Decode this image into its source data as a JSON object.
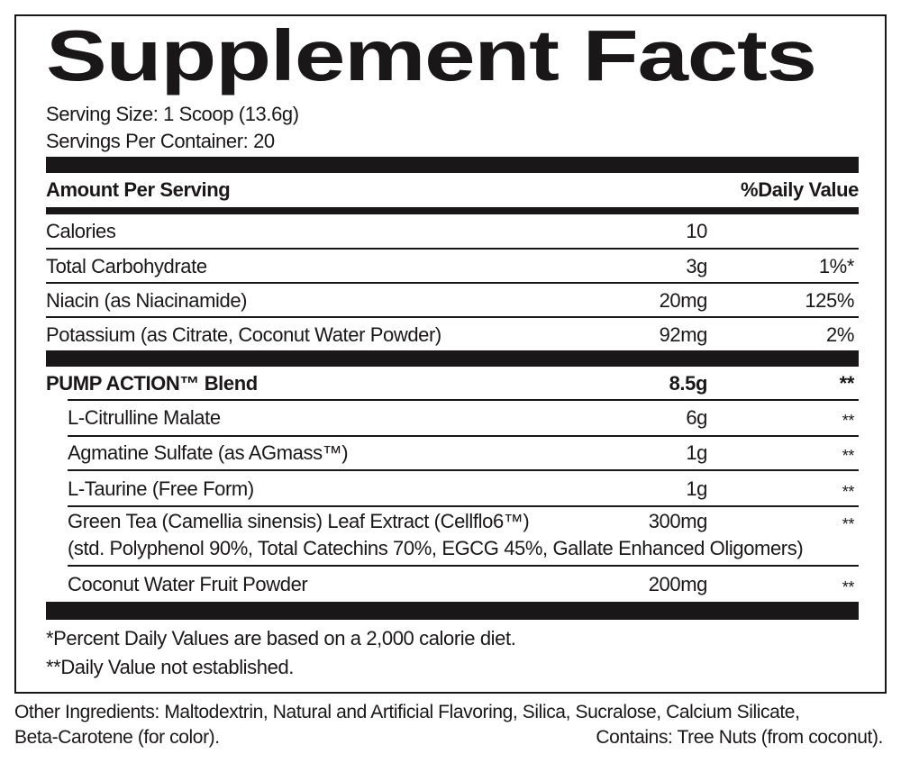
{
  "title": "Supplement Facts",
  "serving_size": "Serving Size: 1 Scoop (13.6g)",
  "servings_per_container": "Servings Per Container: 20",
  "header": {
    "amount": "Amount Per Serving",
    "dv": "%Daily Value"
  },
  "nutrients": [
    {
      "name": "Calories",
      "amount": "10",
      "dv": ""
    },
    {
      "name": "Total Carbohydrate",
      "amount": "3g",
      "dv": "1%*"
    },
    {
      "name": "Niacin (as Niacinamide)",
      "amount": "20mg",
      "dv": "125%"
    },
    {
      "name": "Potassium (as Citrate, Coconut Water Powder)",
      "amount": "92mg",
      "dv": "2%"
    }
  ],
  "blend": {
    "name": "PUMP ACTION™ Blend",
    "amount": "8.5g",
    "dv": "**",
    "ingredients": [
      {
        "name": "L-Citrulline Malate",
        "amount": "6g",
        "dv": "**"
      },
      {
        "name": "Agmatine Sulfate (as AGmass™)",
        "amount": "1g",
        "dv": "**"
      },
      {
        "name": "L-Taurine (Free Form)",
        "amount": "1g",
        "dv": "**"
      },
      {
        "name": "Green Tea (Camellia sinensis) Leaf Extract (Cellflo6™)",
        "detail": "(std. Polyphenol 90%, Total Catechins 70%, EGCG 45%, Gallate Enhanced Oligomers)",
        "amount": "300mg",
        "dv": "**"
      },
      {
        "name": "Coconut Water Fruit Powder",
        "amount": "200mg",
        "dv": "**"
      }
    ]
  },
  "footnotes": [
    "*Percent Daily Values are based on a 2,000 calorie diet.",
    "**Daily Value not established."
  ],
  "other_ingredients": "Other Ingredients: Maltodextrin, Natural and Artificial Flavoring, Silica, Sucralose, Calcium Silicate,",
  "other_ingredients_2": "Beta-Carotene (for color).",
  "allergen": "Contains: Tree Nuts (from coconut)."
}
